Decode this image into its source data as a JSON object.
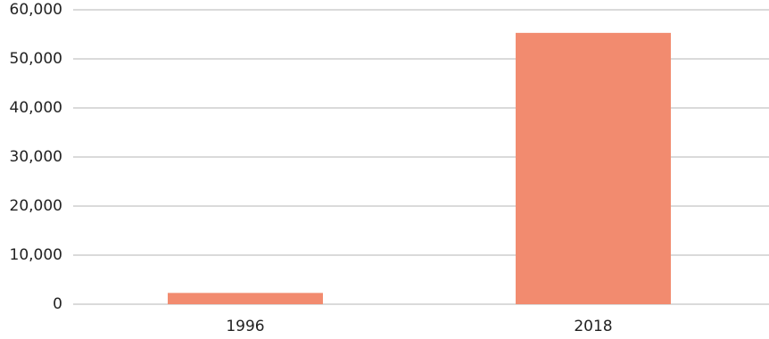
{
  "chart_data": {
    "type": "bar",
    "categories": [
      "1996",
      "2018"
    ],
    "values": [
      2300,
      55300
    ],
    "color": "#f28b6f",
    "ylim": [
      0,
      60000
    ],
    "yticks": [
      0,
      {
        "value": 10000,
        "label": "10,000"
      },
      {
        "value": 20000,
        "label": "20,000"
      },
      {
        "value": 30000,
        "label": "30,000"
      },
      {
        "value": 40000,
        "label": "40,000"
      },
      {
        "value": 50000,
        "label": "50,000"
      },
      {
        "value": 60000,
        "label": "60,000"
      }
    ],
    "grid": true
  }
}
